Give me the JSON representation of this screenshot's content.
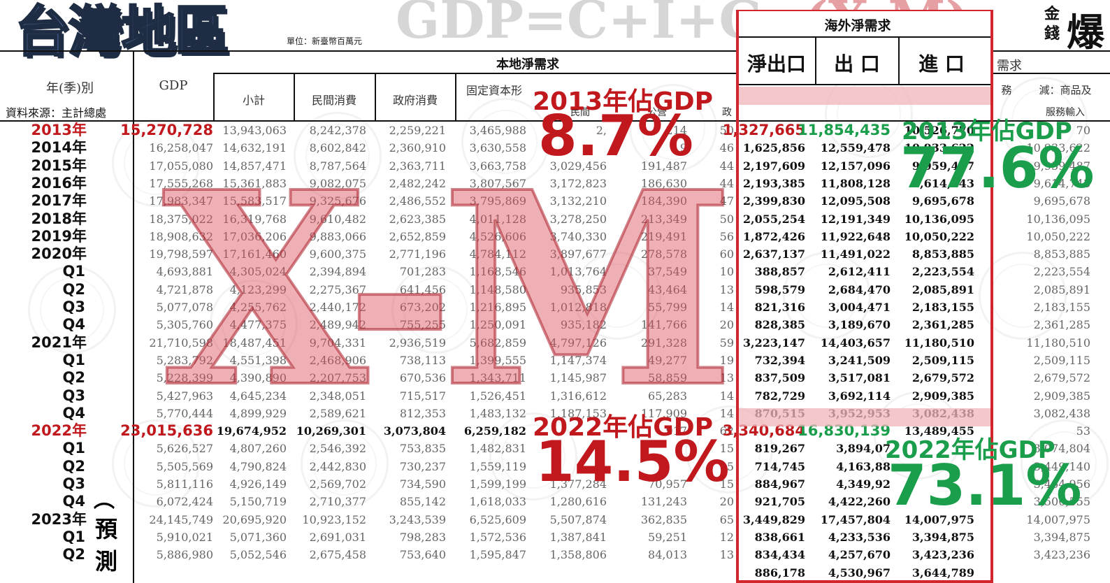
{
  "title": "台灣地區",
  "formula": "GDP=C+I+G",
  "formula_tail": "(X-M)",
  "unit": "單位：新臺幣百萬元",
  "source": "資料來源：主計總處",
  "logo": {
    "line1": "金",
    "line2": "錢",
    "big": "爆"
  },
  "headers": {
    "period": "年(季)別",
    "gdp": "GDP",
    "domestic": "本地淨需求",
    "subtotal": "小計",
    "private": "民間消費",
    "government": "政府消費",
    "fixed_capital": "固定資本形",
    "private_sub": "民間",
    "public_sub": "公營",
    "gov_sub": "政",
    "overseas": "海外淨需求",
    "net_export": "淨出口",
    "export": "出 口",
    "import": "進 口",
    "right_partial": "需求",
    "services": "務",
    "minus_goods": "減：商品及",
    "services_import": "服務輸入"
  },
  "rows": [
    {
      "label": "2013年",
      "gdp": "15,270,728",
      "subtotal": "13,943,063",
      "private": "8,242,378",
      "gov": "2,259,221",
      "fixed": "3,465,988",
      "priv": "2,",
      "pub": "214",
      "x": "50",
      "net": "1,327,665",
      "exp": "11,854,435",
      "imp": "10,526,770",
      "r2": "70"
    },
    {
      "label": "2014年",
      "gdp": "16,258,047",
      "subtotal": "14,632,191",
      "private": "8,602,842",
      "gov": "2,360,910",
      "fixed": "3,630,558",
      "priv": "",
      "pub": "9",
      "x": "46",
      "net": "1,625,856",
      "exp": "12,559,478",
      "imp": "10,933,622",
      "r2": "10,933,622"
    },
    {
      "label": "2015年",
      "gdp": "17,055,080",
      "subtotal": "14,857,471",
      "private": "8,787,564",
      "gov": "2,363,711",
      "fixed": "3,663,758",
      "priv": "3,029,456",
      "pub": "191,487",
      "x": "44",
      "net": "2,197,609",
      "exp": "12,157,096",
      "imp": "9,959,487",
      "r2": "9,959,487"
    },
    {
      "label": "2016年",
      "gdp": "17,555,268",
      "subtotal": "15,361,883",
      "private": "9,082,075",
      "gov": "2,482,242",
      "fixed": "3,807,567",
      "priv": "3,172,823",
      "pub": "186,630",
      "x": "44",
      "net": "2,193,385",
      "exp": "11,808,128",
      "imp": "9,614,743",
      "r2": "9,614,743"
    },
    {
      "label": "2017年",
      "gdp": "17,983,347",
      "subtotal": "15,583,517",
      "private": "9,325,676",
      "gov": "2,486,552",
      "fixed": "3,795,869",
      "priv": "3,132,210",
      "pub": "184,390",
      "x": "47",
      "net": "2,399,830",
      "exp": "12,095,508",
      "imp": "9,695,678",
      "r2": "9,695,678"
    },
    {
      "label": "2018年",
      "gdp": "18,375,022",
      "subtotal": "16,319,768",
      "private": "9,610,482",
      "gov": "2,623,385",
      "fixed": "4,011,128",
      "priv": "3,278,250",
      "pub": "213,349",
      "x": "50",
      "net": "2,055,254",
      "exp": "12,191,349",
      "imp": "10,136,095",
      "r2": "10,136,095"
    },
    {
      "label": "2019年",
      "gdp": "18,908,632",
      "subtotal": "17,036,206",
      "private": "9,883,066",
      "gov": "2,652,859",
      "fixed": "4,526,606",
      "priv": "3,740,330",
      "pub": "219,491",
      "x": "56",
      "net": "1,872,426",
      "exp": "11,922,648",
      "imp": "10,050,222",
      "r2": "10,050,222"
    },
    {
      "label": "2020年",
      "gdp": "19,798,597",
      "subtotal": "17,161,460",
      "private": "9,600,375",
      "gov": "2,771,196",
      "fixed": "4,784,112",
      "priv": "3,897,677",
      "pub": "278,578",
      "x": "60",
      "net": "2,637,137",
      "exp": "11,491,022",
      "imp": "8,853,885",
      "r2": "8,853,885"
    },
    {
      "label": "Q1",
      "gdp": "4,693,881",
      "subtotal": "4,305,024",
      "private": "2,394,894",
      "gov": "701,283",
      "fixed": "1,168,546",
      "priv": "1,013,764",
      "pub": "37,549",
      "x": "10",
      "net": "388,857",
      "exp": "2,612,411",
      "imp": "2,223,554",
      "r2": "2,223,554"
    },
    {
      "label": "Q2",
      "gdp": "4,721,878",
      "subtotal": "4,123,299",
      "private": "2,275,367",
      "gov": "641,456",
      "fixed": "1,148,580",
      "priv": "935,853",
      "pub": "43,464",
      "x": "13",
      "net": "598,579",
      "exp": "2,684,470",
      "imp": "2,085,891",
      "r2": "2,085,891"
    },
    {
      "label": "Q3",
      "gdp": "5,077,078",
      "subtotal": "4,255,762",
      "private": "2,440,172",
      "gov": "673,202",
      "fixed": "1,216,895",
      "priv": "1,012,818",
      "pub": "55,799",
      "x": "14",
      "net": "821,316",
      "exp": "3,004,471",
      "imp": "2,183,155",
      "r2": "2,183,155"
    },
    {
      "label": "Q4",
      "gdp": "5,305,760",
      "subtotal": "4,477,375",
      "private": "2,489,942",
      "gov": "755,255",
      "fixed": "1,250,091",
      "priv": "935,182",
      "pub": "141,766",
      "x": "20",
      "net": "828,385",
      "exp": "3,189,670",
      "imp": "2,361,285",
      "r2": "2,361,285"
    },
    {
      "label": "2021年",
      "gdp": "21,710,598",
      "subtotal": "18,487,451",
      "private": "9,704,331",
      "gov": "2,936,519",
      "fixed": "5,682,859",
      "priv": "4,797,126",
      "pub": "291,328",
      "x": "59",
      "net": "3,223,147",
      "exp": "14,403,657",
      "imp": "11,180,510",
      "r2": "11,180,510"
    },
    {
      "label": "Q1",
      "gdp": "5,283,792",
      "subtotal": "4,551,398",
      "private": "2,468,906",
      "gov": "738,113",
      "fixed": "1,399,555",
      "priv": "1,147,374",
      "pub": "49,277",
      "x": "19",
      "net": "732,394",
      "exp": "3,241,509",
      "imp": "2,509,115",
      "r2": "2,509,115"
    },
    {
      "label": "Q2",
      "gdp": "5,228,399",
      "subtotal": "4,390,890",
      "private": "2,207,753",
      "gov": "670,536",
      "fixed": "1,343,711",
      "priv": "1,145,987",
      "pub": "58,859",
      "x": "13",
      "net": "837,509",
      "exp": "3,517,081",
      "imp": "2,679,572",
      "r2": "2,679,572"
    },
    {
      "label": "Q3",
      "gdp": "5,427,963",
      "subtotal": "4,645,234",
      "private": "2,348,051",
      "gov": "715,517",
      "fixed": "1,526,451",
      "priv": "1,316,612",
      "pub": "65,283",
      "x": "14",
      "net": "782,729",
      "exp": "3,692,114",
      "imp": "2,909,385",
      "r2": "2,909,385"
    },
    {
      "label": "Q4",
      "gdp": "5,770,444",
      "subtotal": "4,899,929",
      "private": "2,589,621",
      "gov": "812,353",
      "fixed": "1,483,132",
      "priv": "1,187,153",
      "pub": "117,909",
      "x": "14",
      "net": "870,515",
      "exp": "3,952,953",
      "imp": "3,082,438",
      "r2": "3,082,438"
    },
    {
      "label": "2022年",
      "gdp": "23,015,636",
      "subtotal": "19,674,952",
      "private": "10,269,301",
      "gov": "3,073,804",
      "fixed": "6,259,182",
      "priv": "",
      "pub": "917",
      "x": "62",
      "net": "3,340,684",
      "exp": "16,830,139",
      "imp": "13,489,455",
      "r2": "53"
    },
    {
      "label": "Q1",
      "gdp": "5,626,527",
      "subtotal": "4,807,260",
      "private": "2,546,392",
      "gov": "753,835",
      "fixed": "1,482,831",
      "priv": "",
      "pub": "",
      "x": "15",
      "net": "819,267",
      "exp": "3,894,07",
      "imp": "",
      "r2": "3,074,804"
    },
    {
      "label": "Q2",
      "gdp": "5,505,569",
      "subtotal": "4,790,824",
      "private": "2,442,830",
      "gov": "730,237",
      "fixed": "1,559,119",
      "priv": "",
      "pub": "",
      "x": "15",
      "net": "714,745",
      "exp": "4,163,88",
      "imp": "",
      "r2": "3,449,140"
    },
    {
      "label": "Q3",
      "gdp": "5,811,116",
      "subtotal": "4,926,149",
      "private": "2,569,702",
      "gov": "734,590",
      "fixed": "1,599,199",
      "priv": "1,377,284",
      "pub": "70,957",
      "x": "15",
      "net": "884,967",
      "exp": "4,349,92",
      "imp": "",
      "r2": "3,464,956"
    },
    {
      "label": "Q4",
      "gdp": "6,072,424",
      "subtotal": "5,150,719",
      "private": "2,710,377",
      "gov": "855,142",
      "fixed": "1,618,033",
      "priv": "1,280,616",
      "pub": "131,243",
      "x": "20",
      "net": "921,705",
      "exp": "4,422,260",
      "imp": "",
      "r2": "3,500,555"
    },
    {
      "label": "2023年",
      "gdp": "24,145,749",
      "subtotal": "20,695,920",
      "private": "10,923,152",
      "gov": "3,243,539",
      "fixed": "6,525,609",
      "priv": "5,507,874",
      "pub": "362,835",
      "x": "65",
      "net": "3,449,829",
      "exp": "17,457,804",
      "imp": "14,007,975",
      "r2": "14,007,975"
    },
    {
      "label": "Q1",
      "gdp": "5,910,021",
      "subtotal": "5,071,360",
      "private": "2,691,031",
      "gov": "798,283",
      "fixed": "1,572,536",
      "priv": "1,387,841",
      "pub": "59,251",
      "x": "12",
      "net": "838,661",
      "exp": "4,233,536",
      "imp": "3,394,875",
      "r2": "3,394,875"
    },
    {
      "label": "Q2",
      "gdp": "5,886,980",
      "subtotal": "5,052,546",
      "private": "2,675,458",
      "gov": "753,640",
      "fixed": "1,595,847",
      "priv": "1,358,806",
      "pub": "84,013",
      "x": "13",
      "net": "834,434",
      "exp": "4,257,670",
      "imp": "3,423,236",
      "r2": "3,423,236"
    },
    {
      "label": "",
      "gdp": "",
      "subtotal": "",
      "private": "",
      "gov": "",
      "fixed": "",
      "priv": "",
      "pub": "",
      "x": "",
      "net": "886,178",
      "exp": "4,530,967",
      "imp": "3,644,789",
      "r2": ""
    }
  ],
  "forecast": {
    "paren": "︵",
    "c1": "預",
    "c2": "測"
  },
  "big_overlay": "X-M",
  "annotations": {
    "a2013_label": "2013年佔GDP",
    "a2013_pct": "8.7%",
    "a2022_label": "2022年佔GDP",
    "a2022_pct": "14.5%",
    "b2013_label": "2013年佔GDP",
    "b2013_pct": "77.6%",
    "b2022_label": "2022年佔GDP",
    "b2022_pct": "73.1%"
  }
}
